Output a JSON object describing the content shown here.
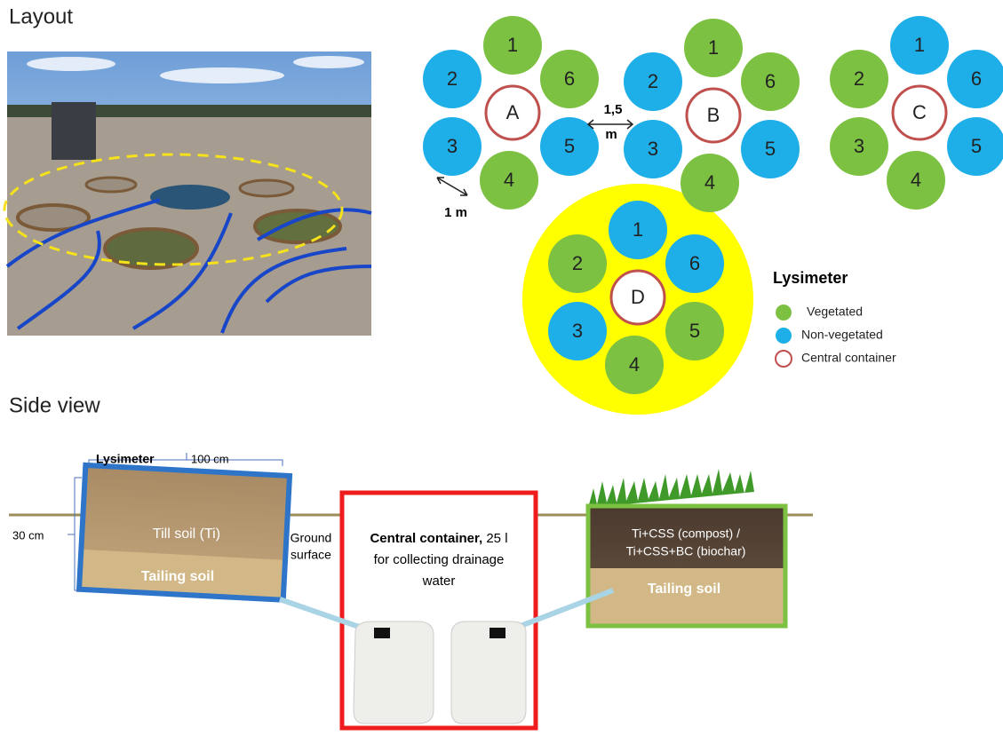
{
  "headings": {
    "layout": "Layout",
    "side_view": "Side view"
  },
  "clusters": [
    {
      "label": "A",
      "lysimeters": [
        {
          "label": "1",
          "color": "#7dc142"
        },
        {
          "label": "2",
          "color": "#1eaee8"
        },
        {
          "label": "3",
          "color": "#1eaee8"
        },
        {
          "label": "4",
          "color": "#7dc142"
        },
        {
          "label": "5",
          "color": "#1eaee8"
        },
        {
          "label": "6",
          "color": "#7dc142"
        }
      ]
    },
    {
      "label": "B",
      "lysimeters": [
        {
          "label": "1",
          "color": "#7dc142"
        },
        {
          "label": "2",
          "color": "#1eaee8"
        },
        {
          "label": "3",
          "color": "#1eaee8"
        },
        {
          "label": "4",
          "color": "#7dc142"
        },
        {
          "label": "5",
          "color": "#1eaee8"
        },
        {
          "label": "6",
          "color": "#7dc142"
        }
      ]
    },
    {
      "label": "C",
      "lysimeters": [
        {
          "label": "1",
          "color": "#1eaee8"
        },
        {
          "label": "2",
          "color": "#7dc142"
        },
        {
          "label": "3",
          "color": "#7dc142"
        },
        {
          "label": "4",
          "color": "#7dc142"
        },
        {
          "label": "5",
          "color": "#1eaee8"
        },
        {
          "label": "6",
          "color": "#1eaee8"
        }
      ]
    },
    {
      "label": "D",
      "lysimeters": [
        {
          "label": "1",
          "color": "#1eaee8"
        },
        {
          "label": "2",
          "color": "#7dc142"
        },
        {
          "label": "3",
          "color": "#1eaee8"
        },
        {
          "label": "4",
          "color": "#7dc142"
        },
        {
          "label": "5",
          "color": "#7dc142"
        },
        {
          "label": "6",
          "color": "#1eaee8"
        }
      ]
    }
  ],
  "distances": {
    "between_clusters": [
      "1,5",
      "m"
    ],
    "between_lysimeters": "1 m"
  },
  "legend": {
    "title": "Lysimeter",
    "items": [
      {
        "label": "Vegetated",
        "fill": "#7dc142"
      },
      {
        "label": "Non-vegetated",
        "fill": "#1eaee8"
      },
      {
        "label": "Central container",
        "stroke": "#c0504d"
      }
    ]
  },
  "side_view": {
    "lysimeter": "Lysimeter",
    "width": "100 cm",
    "depth": "30 cm",
    "till_soil": "Till soil (Ti)",
    "tailing_soil_left": "Tailing soil",
    "ground_surface": [
      "Ground",
      "surface"
    ],
    "container": {
      "bold": "Central container,",
      "rest": "25 l",
      "lines": [
        "for collecting drainage",
        "water"
      ]
    },
    "amended_soil": [
      "Ti+CSS (compost) /",
      "Ti+CSS+BC (biochar)"
    ],
    "tailing_soil_right": "Tailing soil"
  }
}
